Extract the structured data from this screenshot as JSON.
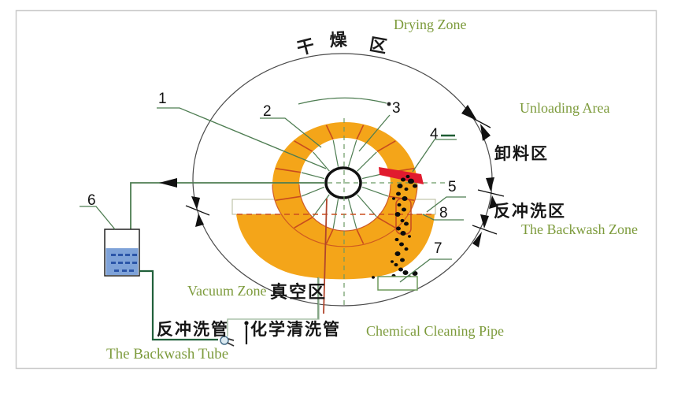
{
  "figure": {
    "title_semantic": "rotary-disc-vacuum-filter-diagram",
    "zones": {
      "drying_en": "Drying Zone",
      "drying_zh_chars": [
        "干",
        "燥",
        "区"
      ],
      "unloading_en": "Unloading Area",
      "unloading_zh": "卸料区",
      "backwash_zh": "反冲洗区",
      "backwash_en": "The Backwash Zone",
      "vacuum_en": "Vacuum Zone",
      "vacuum_zh": "真空区"
    },
    "pipes": {
      "backwash_tube_zh": "反冲洗管",
      "backwash_tube_en": "The Backwash Tube",
      "chemical_pipe_zh": "化学清洗管",
      "chemical_pipe_en": "Chemical Cleaning Pipe"
    },
    "part_numbers": [
      "1",
      "2",
      "3",
      "4",
      "5",
      "6",
      "7",
      "8"
    ],
    "colors": {
      "drum_orange": "#F4A519",
      "segment_red": "#C84B1E",
      "chute_red": "#E11B2E",
      "leader_green": "#4E7D52",
      "label_green": "#7D9B3C",
      "liquid_blue": "#7EA2D8",
      "dark_pipe_green": "#20603A",
      "border_gray": "#C9C9C9"
    }
  }
}
